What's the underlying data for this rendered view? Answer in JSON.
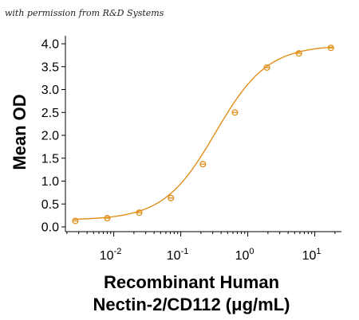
{
  "watermark": "with permission from R&D Systems",
  "chart_data": {
    "type": "scatter",
    "ylabel": "Mean OD",
    "xlabel_line1": "Recombinant Human",
    "xlabel_line2": "Nectin-2/CD112 (μg/mL)",
    "x_scale": "log",
    "xlim": [
      0.0019,
      25
    ],
    "ylim": [
      0,
      4.0
    ],
    "y_ticks": [
      "0.0",
      "0.5",
      "1.0",
      "1.5",
      "2.0",
      "2.5",
      "3.0",
      "3.5",
      "4.0"
    ],
    "x_ticks": [
      {
        "value": 0.01,
        "base": "10",
        "exp": "-2"
      },
      {
        "value": 0.1,
        "base": "10",
        "exp": "-1"
      },
      {
        "value": 1,
        "base": "10",
        "exp": "0"
      },
      {
        "value": 10,
        "base": "10",
        "exp": "1"
      }
    ],
    "series": [
      {
        "x": [
          0.00267,
          0.008,
          0.024,
          0.0714,
          0.214,
          0.643,
          1.93,
          5.79,
          17.4
        ],
        "y": [
          0.13,
          0.19,
          0.31,
          0.63,
          1.37,
          2.5,
          3.48,
          3.79,
          3.91
        ],
        "error": [
          0.02,
          0.02,
          0.02,
          0.03,
          0.04,
          0.04,
          0.03,
          0.03,
          0.02
        ],
        "fit": {
          "model": "4PL",
          "bottom": 0.15,
          "top": 3.97,
          "ec50": 0.33,
          "hill": 1.12
        }
      }
    ],
    "colors": {
      "series": "#E08F1B",
      "axis": "#000000"
    },
    "grid": false
  }
}
